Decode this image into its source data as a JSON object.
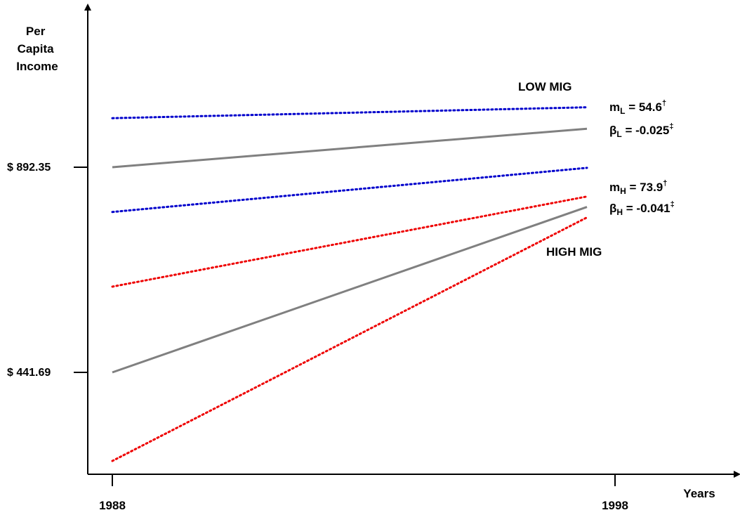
{
  "chart_data": {
    "type": "line",
    "ylabel": [
      "Per",
      "Capita",
      "Income"
    ],
    "xlabel": "Years",
    "x_ticks": [
      "1988",
      "1998"
    ],
    "y_ticks": [
      "$ 892.35",
      "$ 441.69"
    ],
    "x_domain": [
      1988,
      1998
    ],
    "series": [
      {
        "name": "LOW MIG",
        "role": "fit",
        "color": "#808080",
        "dash": "solid",
        "values": [
          [
            1988,
            892.35
          ],
          [
            1998,
            977
          ]
        ]
      },
      {
        "role": "upper",
        "color": "#0000cc",
        "dash": "dotted",
        "values": [
          [
            1988,
            1000
          ],
          [
            1998,
            1024
          ]
        ]
      },
      {
        "role": "lower",
        "color": "#0000cc",
        "dash": "dotted",
        "values": [
          [
            1988,
            794
          ],
          [
            1998,
            891
          ]
        ]
      },
      {
        "name": "HIGH MIG",
        "role": "fit",
        "color": "#808080",
        "dash": "solid",
        "values": [
          [
            1988,
            441.69
          ],
          [
            1998,
            805
          ]
        ]
      },
      {
        "role": "upper",
        "color": "#ee0000",
        "dash": "dotted",
        "values": [
          [
            1988,
            630
          ],
          [
            1998,
            828
          ]
        ]
      },
      {
        "role": "lower",
        "color": "#ee0000",
        "dash": "dotted",
        "values": [
          [
            1988,
            247
          ],
          [
            1998,
            782
          ]
        ]
      }
    ],
    "series_labels": [
      {
        "text": "LOW MIG",
        "anchor": "above low group, right"
      },
      {
        "text": "HIGH MIG",
        "anchor": "below high group, right"
      }
    ],
    "annotations": [
      {
        "symbol": "m",
        "sub": "L",
        "value": " = 54.6",
        "sup": "†"
      },
      {
        "symbol": "β",
        "sub": "L",
        "value": " = -0.025",
        "sup": "‡"
      },
      {
        "symbol": "m",
        "sub": "H",
        "value": " = 73.9",
        "sup": "†"
      },
      {
        "symbol": "β",
        "sub": "H",
        "value": " = -0.041",
        "sup": "‡"
      }
    ]
  }
}
